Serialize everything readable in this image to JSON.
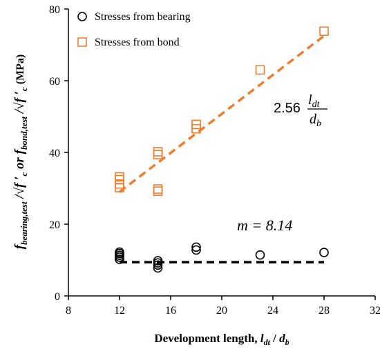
{
  "chart_data": {
    "type": "scatter",
    "xlabel": {
      "prefix": "Development length, ",
      "var1": "l",
      "sub1": "dt",
      "sep": " / ",
      "var2": "d",
      "sub2": "b"
    },
    "ylabel": {
      "f1": "f",
      "sub1": "bearing,test",
      "mid": " /√f ′",
      "c1": "c",
      "or": " or ",
      "f2": "f",
      "sub2": "bond,test",
      "mid2": " /√f ′",
      "c2": "c",
      "unit": " (MPa)"
    },
    "xlim": [
      8,
      32
    ],
    "ylim": [
      0,
      80
    ],
    "xticks": [
      "8",
      "12",
      "16",
      "20",
      "24",
      "28",
      "32"
    ],
    "yticks": [
      "0",
      "20",
      "40",
      "60",
      "80"
    ],
    "grid": false,
    "legend_position": "top-left",
    "series": [
      {
        "name": "Stresses from bearing",
        "marker": "circle",
        "color": "#000000",
        "points": [
          [
            12,
            10.2
          ],
          [
            12,
            10.8
          ],
          [
            12,
            11.3
          ],
          [
            12,
            11.8
          ],
          [
            12,
            12.2
          ],
          [
            15,
            7.8
          ],
          [
            15,
            8.6
          ],
          [
            15,
            9.2
          ],
          [
            15,
            9.8
          ],
          [
            18,
            12.8
          ],
          [
            18,
            13.6
          ],
          [
            23,
            11.4
          ],
          [
            28,
            12.1
          ]
        ]
      },
      {
        "name": "Stresses from bond",
        "marker": "square",
        "color": "#ed7d31",
        "points": [
          [
            12,
            30.2
          ],
          [
            12,
            31.2
          ],
          [
            12,
            32.4
          ],
          [
            12,
            33.2
          ],
          [
            15,
            29.2
          ],
          [
            15,
            29.8
          ],
          [
            15,
            39.4
          ],
          [
            15,
            40.2
          ],
          [
            18,
            46.6
          ],
          [
            18,
            47.8
          ],
          [
            23,
            63.0
          ],
          [
            28,
            73.8
          ]
        ]
      }
    ],
    "fit_lines": [
      {
        "series": "Stresses from bond",
        "color": "#ed7d31",
        "style": "dashed",
        "x": [
          12,
          28
        ],
        "y": [
          29.0,
          72.5
        ]
      },
      {
        "series": "Stresses from bearing",
        "color": "#000000",
        "style": "dashed",
        "x": [
          12,
          28
        ],
        "y": [
          9.4,
          9.4
        ]
      }
    ],
    "annotations": {
      "m_label": "m = 8.14",
      "eq_coef": "2.56",
      "eq_num_var": "l",
      "eq_num_sub": "dt",
      "eq_den_var": "d",
      "eq_den_sub": "b"
    }
  }
}
